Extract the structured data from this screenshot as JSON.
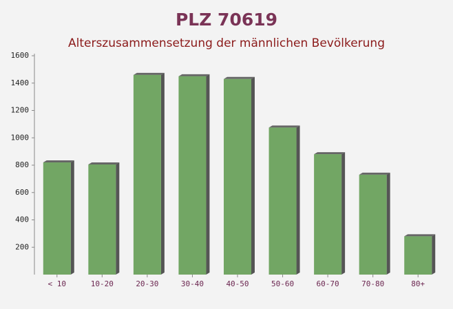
{
  "chart_data": {
    "type": "bar",
    "title": "PLZ 70619",
    "subtitle": "Alterszusammensetzung der männlichen Bevölkerung",
    "categories": [
      "< 10",
      "10-20",
      "20-30",
      "30-40",
      "40-50",
      "50-60",
      "60-70",
      "70-80",
      "80+"
    ],
    "values": [
      820,
      805,
      1460,
      1450,
      1430,
      1075,
      880,
      730,
      280
    ],
    "color": "#6aa15c",
    "ylim": [
      0,
      1600
    ],
    "yticks": [
      200,
      400,
      600,
      800,
      1000,
      1200,
      1400,
      1600
    ]
  }
}
